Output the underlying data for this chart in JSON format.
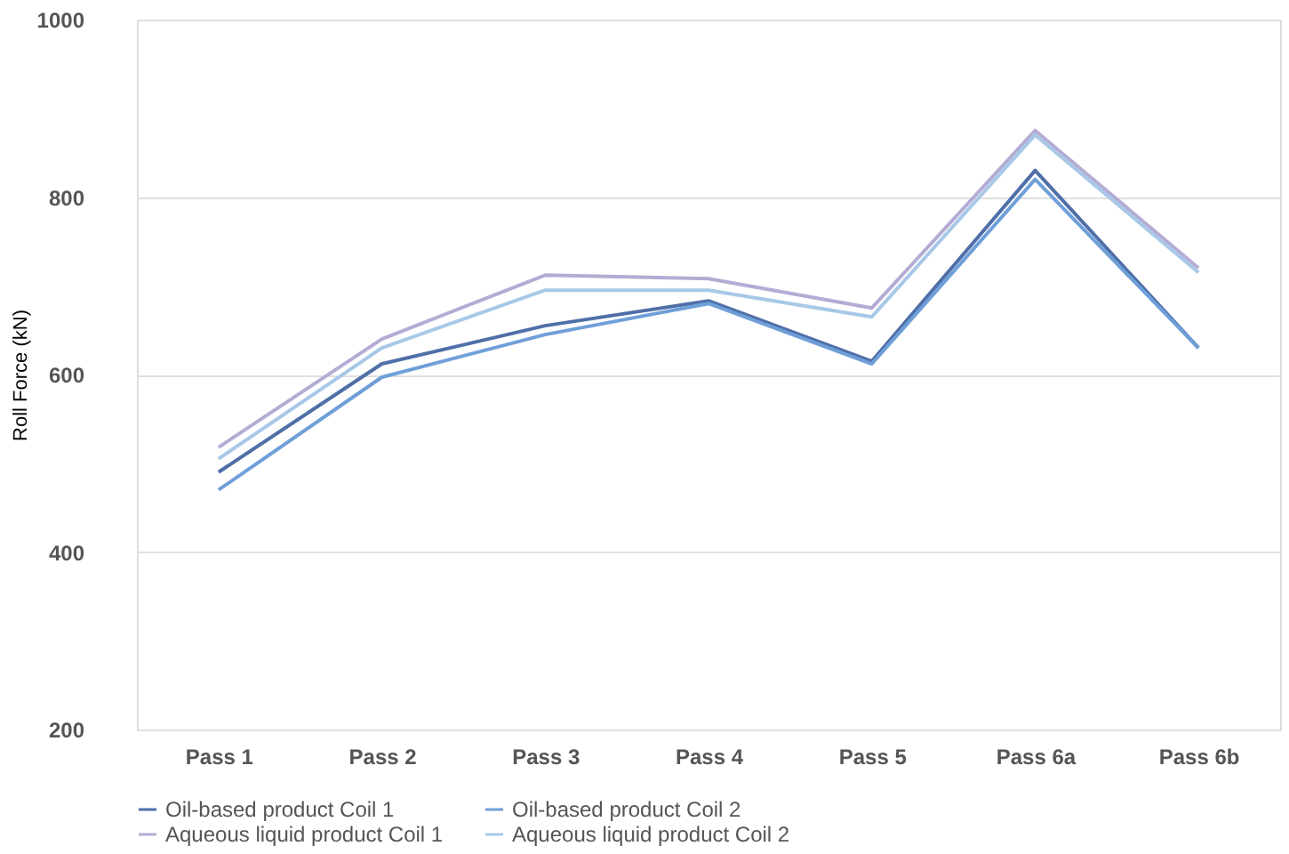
{
  "chart_data": {
    "type": "line",
    "ylabel": "Roll Force (kN)",
    "categories": [
      "Pass 1",
      "Pass 2",
      "Pass 3",
      "Pass 4",
      "Pass 5",
      "Pass 6a",
      "Pass 6b"
    ],
    "series": [
      {
        "name": "Oil-based product Coil 1",
        "color": "#4f6fa8",
        "values": [
          490,
          612,
          655,
          683,
          615,
          830,
          630
        ]
      },
      {
        "name": "Oil-based product Coil 2",
        "color": "#6f9fd8",
        "values": [
          470,
          597,
          645,
          680,
          612,
          820,
          630
        ]
      },
      {
        "name": "Aqueous liquid product Coil 1",
        "color": "#b4acd4",
        "values": [
          518,
          640,
          712,
          708,
          675,
          875,
          720
        ]
      },
      {
        "name": "Aqueous liquid product Coil 2",
        "color": "#a8c8e8",
        "values": [
          505,
          630,
          695,
          695,
          665,
          870,
          715
        ]
      }
    ],
    "ylim": [
      200,
      1000
    ],
    "yticks": [
      200,
      400,
      600,
      800,
      1000
    ],
    "grid": "y",
    "legend": "bottom",
    "marker": "none",
    "line_style": "solid"
  }
}
